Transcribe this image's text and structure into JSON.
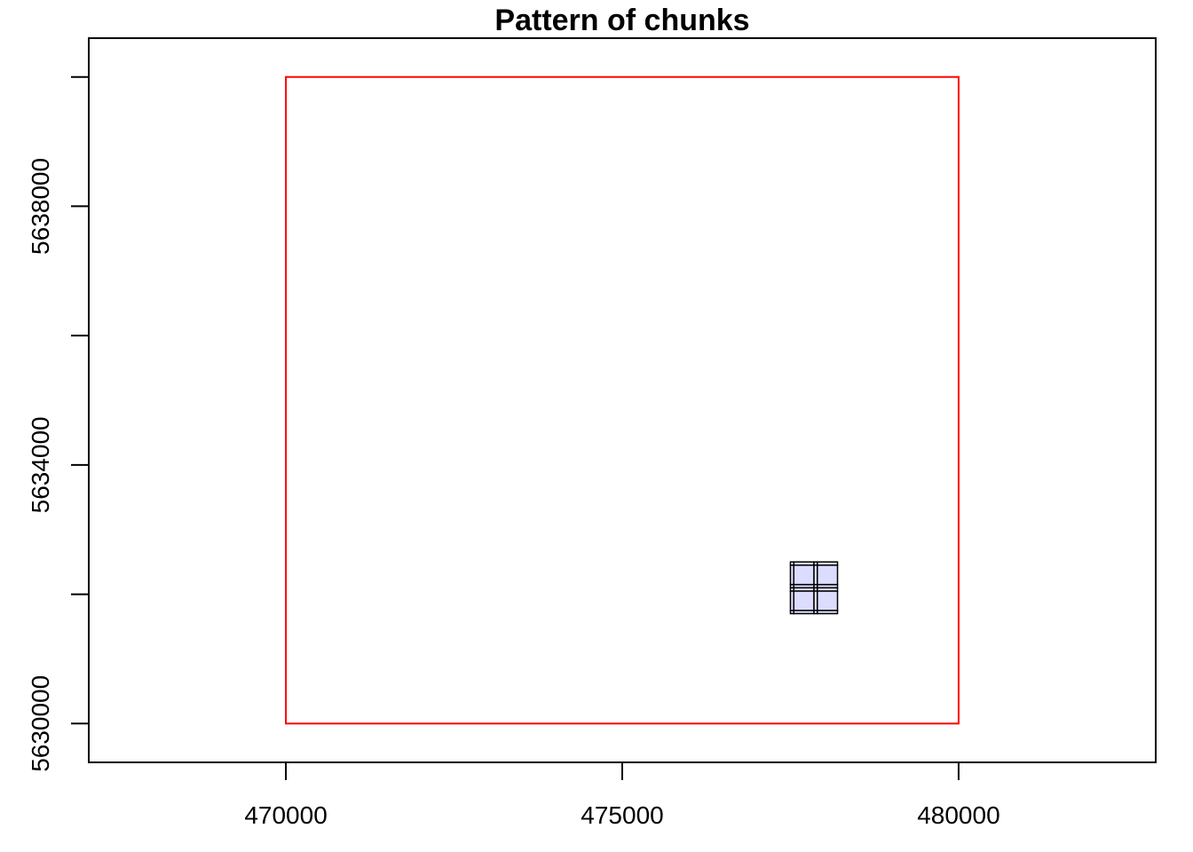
{
  "chart_data": {
    "type": "map",
    "title": "Pattern of chunks",
    "xlabel": "",
    "ylabel": "",
    "xlim": [
      467070,
      482930
    ],
    "ylim": [
      5629400,
      5640600
    ],
    "x_ticks": [
      470000,
      475000,
      480000
    ],
    "x_tick_labels": [
      "470000",
      "475000",
      "480000"
    ],
    "y_ticks": [
      5630000,
      5632000,
      5634000,
      5636000,
      5638000,
      5640000
    ],
    "y_tick_labels": [
      "5630000",
      "",
      "5634000",
      "",
      "5638000",
      ""
    ],
    "extent": {
      "xmin": 470000,
      "xmax": 480000,
      "ymin": 5630000,
      "ymax": 5640000,
      "color": "#ff0000"
    },
    "chunks": {
      "xmin": 477500,
      "xmax": 478200,
      "ymin": 5631700,
      "ymax": 5632500,
      "x_breaks": [
        477500,
        477550,
        477850,
        477900,
        478200
      ],
      "y_breaks": [
        5631700,
        5631750,
        5632050,
        5632100,
        5632150,
        5632450,
        5632500
      ],
      "fill": "#dcdcff",
      "stroke": "#000000"
    },
    "grid": false
  }
}
